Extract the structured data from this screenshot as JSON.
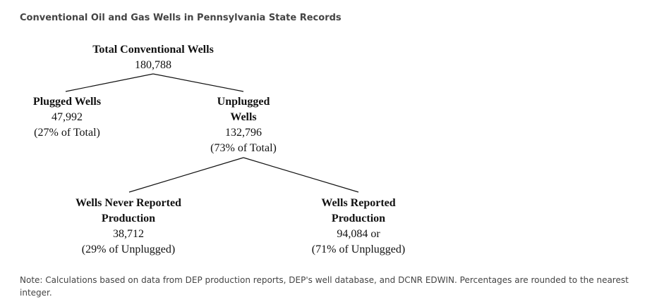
{
  "title": "Conventional Oil and Gas Wells in Pennsylvania State Records",
  "nodes": {
    "total": {
      "label": "Total Conventional Wells",
      "count": "180,788"
    },
    "plugged": {
      "label": "Plugged Wells",
      "count": "47,992",
      "share": "(27% of Total)"
    },
    "unplugged": {
      "label_line1": "Unplugged",
      "label_line2": "Wells",
      "count": "132,796",
      "share": "(73% of Total)"
    },
    "never_reported": {
      "label_line1": "Wells Never Reported",
      "label_line2": "Production",
      "count": "38,712",
      "share": "(29% of Unplugged)"
    },
    "reported": {
      "label_line1": "Wells Reported",
      "label_line2": "Production",
      "count": "94,084 or",
      "share": "(71% of Unplugged)"
    }
  },
  "note": "Note: Calculations based on data from DEP production reports, DEP's well database, and DCNR EDWIN. Percentages are rounded to the nearest integer."
}
